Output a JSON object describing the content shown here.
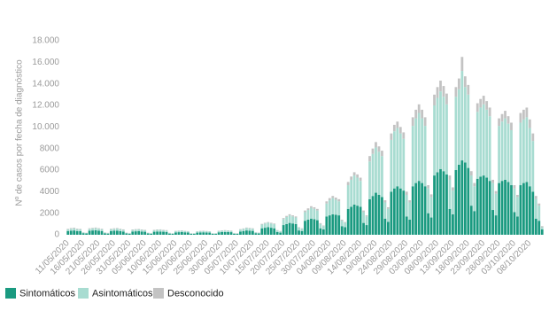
{
  "chart_data": {
    "type": "stacked_bar",
    "y_label": "Nº de casos por fecha de diagnóstico",
    "ylim": [
      0,
      18000
    ],
    "yticks": [
      0,
      2000,
      4000,
      6000,
      8000,
      {
        "value": 10000,
        "label": "10.000"
      },
      {
        "value": 12000,
        "label": "12.000"
      },
      {
        "value": 14000,
        "label": "14.000"
      },
      {
        "value": 16000,
        "label": "16.000"
      },
      {
        "value": 18000,
        "label": "18.000"
      }
    ],
    "grid": false,
    "legend": "bottom-left",
    "categories": [
      "11/05/2020",
      null,
      null,
      null,
      null,
      "16/05/2020",
      null,
      null,
      null,
      null,
      "21/05/2020",
      null,
      null,
      null,
      null,
      "26/05/2020",
      null,
      null,
      null,
      null,
      "31/05/2020",
      null,
      null,
      null,
      null,
      "05/06/2020",
      null,
      null,
      null,
      null,
      "10/06/2020",
      null,
      null,
      null,
      null,
      "15/06/2020",
      null,
      null,
      null,
      null,
      "20/06/2020",
      null,
      null,
      null,
      null,
      "25/06/2020",
      null,
      null,
      null,
      null,
      "30/06/2020",
      null,
      null,
      null,
      null,
      "05/07/2020",
      null,
      null,
      null,
      null,
      "10/07/2020",
      null,
      null,
      null,
      null,
      "15/07/2020",
      null,
      null,
      null,
      null,
      "20/07/2020",
      null,
      null,
      null,
      null,
      "25/07/2020",
      null,
      null,
      null,
      null,
      "30/07/2020",
      null,
      null,
      null,
      null,
      "04/08/2020",
      null,
      null,
      null,
      null,
      "09/08/2020",
      null,
      null,
      null,
      null,
      "14/08/2020",
      null,
      null,
      null,
      null,
      "19/08/2020",
      null,
      null,
      null,
      null,
      "24/08/2020",
      null,
      null,
      null,
      null,
      "29/08/2020",
      null,
      null,
      null,
      null,
      "03/09/2020",
      null,
      null,
      null,
      null,
      "08/09/2020",
      null,
      null,
      null,
      null,
      "13/09/2020",
      null,
      null,
      null,
      null,
      "18/09/2020",
      null,
      null,
      null,
      null,
      "23/09/2020",
      null,
      null,
      null,
      null,
      "28/09/2020",
      null,
      null,
      null,
      null,
      "03/10/2020",
      null,
      null,
      null,
      null,
      "08/10/2020",
      null,
      null,
      null,
      null
    ],
    "series": [
      {
        "name": "Sintomáticos",
        "color": "#1a9a80",
        "values": [
          350,
          380,
          400,
          350,
          330,
          150,
          120,
          380,
          400,
          420,
          380,
          350,
          140,
          110,
          350,
          370,
          380,
          340,
          300,
          130,
          100,
          300,
          320,
          330,
          300,
          280,
          120,
          100,
          280,
          300,
          300,
          280,
          260,
          110,
          90,
          220,
          240,
          250,
          230,
          210,
          90,
          80,
          200,
          220,
          230,
          210,
          200,
          90,
          80,
          230,
          250,
          260,
          250,
          240,
          100,
          90,
          300,
          350,
          400,
          380,
          360,
          150,
          120,
          600,
          650,
          700,
          650,
          600,
          250,
          200,
          900,
          1000,
          1100,
          1050,
          1000,
          400,
          350,
          1300,
          1400,
          1500,
          1450,
          1350,
          600,
          500,
          1700,
          1800,
          1900,
          1850,
          1800,
          800,
          700,
          2400,
          2600,
          2800,
          2700,
          2600,
          1100,
          900,
          3300,
          3600,
          3900,
          3700,
          3500,
          1500,
          1200,
          4000,
          4300,
          4500,
          4300,
          4100,
          1700,
          1400,
          4500,
          4800,
          5000,
          4800,
          4500,
          2000,
          1600,
          5500,
          5800,
          6100,
          5900,
          5600,
          2400,
          1900,
          6000,
          6500,
          6900,
          6700,
          6200,
          2700,
          2200,
          5200,
          5400,
          5500,
          5300,
          5000,
          2300,
          1800,
          4800,
          5000,
          5100,
          4900,
          4600,
          2100,
          1700,
          4600,
          4800,
          4900,
          4500,
          4000,
          1500,
          1300,
          500
        ]
      },
      {
        "name": "Asintomáticos",
        "color": "#a8dcd1",
        "values": [
          150,
          180,
          200,
          170,
          160,
          60,
          50,
          170,
          190,
          200,
          180,
          160,
          60,
          50,
          160,
          180,
          190,
          170,
          150,
          60,
          50,
          150,
          160,
          170,
          150,
          140,
          60,
          50,
          140,
          150,
          160,
          140,
          130,
          50,
          40,
          110,
          120,
          130,
          110,
          100,
          40,
          40,
          100,
          110,
          120,
          110,
          100,
          40,
          40,
          120,
          130,
          140,
          130,
          120,
          50,
          40,
          180,
          200,
          230,
          220,
          200,
          80,
          70,
          350,
          400,
          420,
          400,
          380,
          150,
          120,
          550,
          650,
          700,
          650,
          600,
          250,
          200,
          800,
          900,
          1000,
          950,
          900,
          400,
          300,
          1200,
          1400,
          1500,
          1400,
          1300,
          500,
          400,
          2200,
          2500,
          2700,
          2600,
          2400,
          1000,
          800,
          3500,
          3900,
          4200,
          4000,
          3800,
          1500,
          1200,
          4800,
          5300,
          5400,
          5100,
          4800,
          2000,
          1600,
          5600,
          6000,
          6300,
          6000,
          5600,
          2300,
          1900,
          6500,
          6900,
          7200,
          6900,
          6500,
          2700,
          2200,
          6800,
          7000,
          8300,
          7000,
          6800,
          2800,
          2300,
          6200,
          6400,
          6600,
          6300,
          6000,
          2500,
          2000,
          5300,
          5500,
          5700,
          5400,
          5100,
          2200,
          1800,
          5800,
          5900,
          6000,
          5400,
          4700,
          1800,
          1400,
          200
        ]
      },
      {
        "name": "Desconocido",
        "color": "#c3c3c3",
        "values": [
          50,
          60,
          60,
          50,
          50,
          20,
          20,
          50,
          50,
          50,
          50,
          50,
          20,
          20,
          50,
          50,
          50,
          50,
          50,
          20,
          20,
          40,
          40,
          40,
          40,
          40,
          20,
          20,
          40,
          40,
          40,
          40,
          40,
          20,
          20,
          30,
          30,
          30,
          30,
          30,
          20,
          20,
          30,
          30,
          30,
          30,
          30,
          20,
          20,
          30,
          30,
          30,
          30,
          30,
          20,
          20,
          40,
          40,
          40,
          40,
          40,
          20,
          20,
          60,
          60,
          60,
          60,
          60,
          30,
          30,
          100,
          100,
          100,
          100,
          100,
          50,
          50,
          150,
          150,
          150,
          150,
          150,
          80,
          60,
          200,
          200,
          200,
          200,
          200,
          100,
          80,
          300,
          300,
          300,
          300,
          300,
          150,
          100,
          500,
          500,
          500,
          500,
          500,
          200,
          150,
          600,
          600,
          600,
          600,
          600,
          300,
          200,
          800,
          800,
          800,
          800,
          800,
          300,
          250,
          1000,
          1000,
          1000,
          1000,
          1000,
          400,
          300,
          900,
          1000,
          1300,
          1000,
          900,
          400,
          300,
          800,
          800,
          800,
          800,
          800,
          300,
          250,
          700,
          700,
          700,
          700,
          700,
          300,
          200,
          900,
          900,
          900,
          800,
          700,
          300,
          200,
          100
        ]
      }
    ]
  }
}
